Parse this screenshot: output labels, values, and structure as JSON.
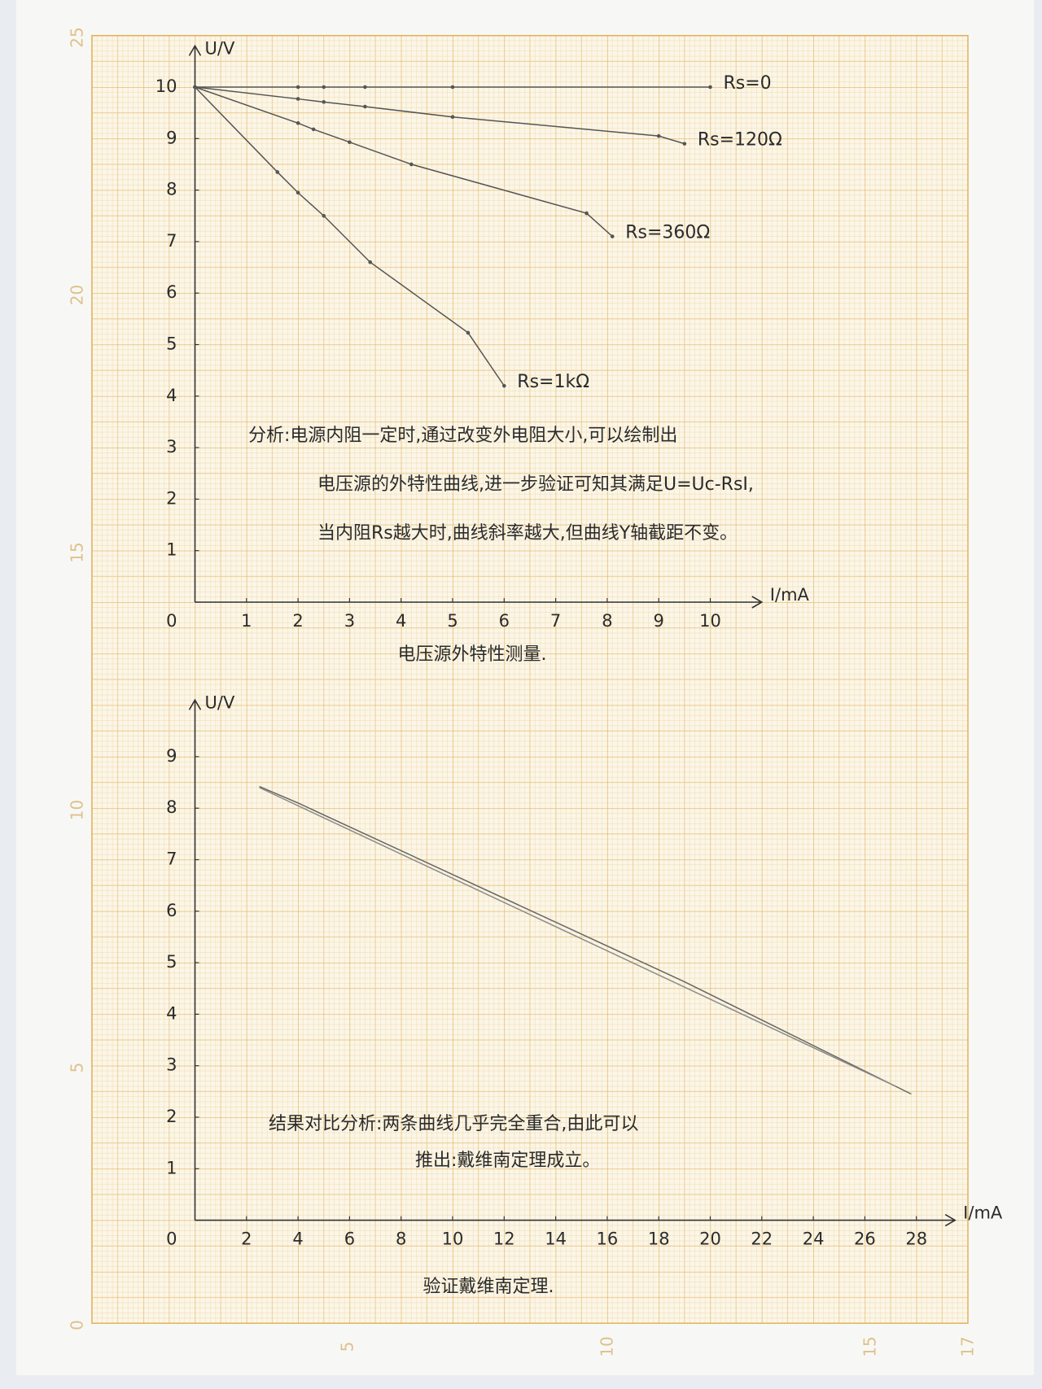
{
  "paper_labels": {
    "left": [
      "25",
      "20",
      "15",
      "10",
      "5",
      "0"
    ],
    "bottom": [
      "5",
      "10",
      "15",
      "17"
    ]
  },
  "chart_data": [
    {
      "type": "line",
      "title": "电压源外特性测量.",
      "x_label": "I/mA",
      "y_label": "U/V",
      "xlim": [
        0,
        11
      ],
      "ylim": [
        0,
        10.8
      ],
      "xticks": [
        1,
        2,
        3,
        4,
        5,
        6,
        7,
        8,
        9,
        10
      ],
      "yticks": [
        0,
        1,
        2,
        3,
        4,
        5,
        6,
        7,
        8,
        9,
        10
      ],
      "series": [
        {
          "name": "Rs=0",
          "color": "#555555",
          "x": [
            0,
            2,
            2.5,
            3.3,
            5,
            10
          ],
          "values": [
            10,
            10,
            10,
            10,
            10,
            10
          ]
        },
        {
          "name": "Rs=120Ω",
          "color": "#555555",
          "x": [
            0,
            2,
            2.5,
            3.3,
            5,
            9,
            9.5
          ],
          "values": [
            10,
            9.77,
            9.71,
            9.62,
            9.42,
            9.05,
            8.9
          ]
        },
        {
          "name": "Rs=360Ω",
          "color": "#555555",
          "x": [
            0,
            2,
            2.3,
            3,
            4.2,
            7.6,
            8.1
          ],
          "values": [
            10,
            9.3,
            9.18,
            8.93,
            8.5,
            7.55,
            7.1
          ]
        },
        {
          "name": "Rs=1kΩ",
          "color": "#555555",
          "x": [
            0,
            1.6,
            2,
            2.5,
            3.4,
            5.3,
            6
          ],
          "values": [
            10,
            8.35,
            7.95,
            7.5,
            6.6,
            5.23,
            4.2
          ]
        }
      ],
      "annotation": [
        "分析:电源内阻一定时,通过改变外电阻大小,可以绘制出",
        "电压源的外特性曲线,进一步验证可知其满足U=Uc-RsI,",
        "当内阻Rs越大时,曲线斜率越大,但曲线Y轴截距不变。"
      ]
    },
    {
      "type": "line",
      "title": "验证戴维南定理.",
      "x_label": "I/mA",
      "y_label": "U/V",
      "xlim": [
        0,
        29.5
      ],
      "ylim": [
        0,
        10.1
      ],
      "xticks": [
        2,
        4,
        6,
        8,
        10,
        12,
        14,
        16,
        18,
        20,
        22,
        24,
        26,
        28
      ],
      "yticks": [
        0,
        1,
        2,
        3,
        4,
        5,
        6,
        7,
        8,
        9
      ],
      "series": [
        {
          "color": "#666666",
          "x": [
            2.5,
            4,
            19,
            27.8
          ],
          "values": [
            8.42,
            8.1,
            4.63,
            2.45
          ]
        },
        {
          "color": "#8a8a8a",
          "x": [
            2.5,
            27.2
          ],
          "values": [
            8.4,
            2.6
          ]
        }
      ],
      "annotation": [
        "结果对比分析:两条曲线几乎完全重合,由此可以",
        "推出:戴维南定理成立。"
      ]
    }
  ]
}
